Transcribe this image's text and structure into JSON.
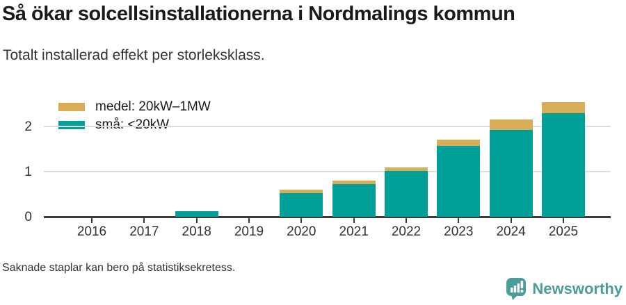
{
  "header": {
    "title": "Så ökar solcellsinstallationerna i Nordmalings kommun",
    "subtitle": "Totalt installerad effekt per storleksklass."
  },
  "legend": {
    "items": [
      {
        "label": "medel: 20kW–1MW",
        "color": "#D9AD58"
      },
      {
        "label": "små: <20kW",
        "color": "#00A098"
      }
    ]
  },
  "chart_data": {
    "type": "bar",
    "stacked": true,
    "title": "Så ökar solcellsinstallationerna i Nordmalings kommun",
    "subtitle": "Totalt installerad effekt per storleksklass.",
    "categories": [
      "2016",
      "2017",
      "2018",
      "2019",
      "2020",
      "2021",
      "2022",
      "2023",
      "2024",
      "2025"
    ],
    "series": [
      {
        "name": "små: <20kW",
        "color": "#00A098",
        "values": [
          0,
          0,
          0.12,
          0,
          0.53,
          0.73,
          1.02,
          1.57,
          1.93,
          2.29
        ]
      },
      {
        "name": "medel: 20kW–1MW",
        "color": "#D9AD58",
        "values": [
          0,
          0,
          0,
          0,
          0.07,
          0.07,
          0.07,
          0.14,
          0.23,
          0.25
        ]
      }
    ],
    "xlabel": "",
    "ylabel": "",
    "yticks": [
      0,
      1,
      2
    ],
    "ylim": [
      0,
      2.8
    ],
    "grid": "horizontal",
    "legend_position": "top-left",
    "missing_bars": [
      "2016",
      "2017",
      "2019"
    ]
  },
  "footer": {
    "note": "Saknade staplar kan bero på statistiksekretess."
  },
  "branding": {
    "name": "Newsworthy",
    "color": "#4A9D99",
    "icon": "bar-chart-speech-bubble-icon"
  }
}
